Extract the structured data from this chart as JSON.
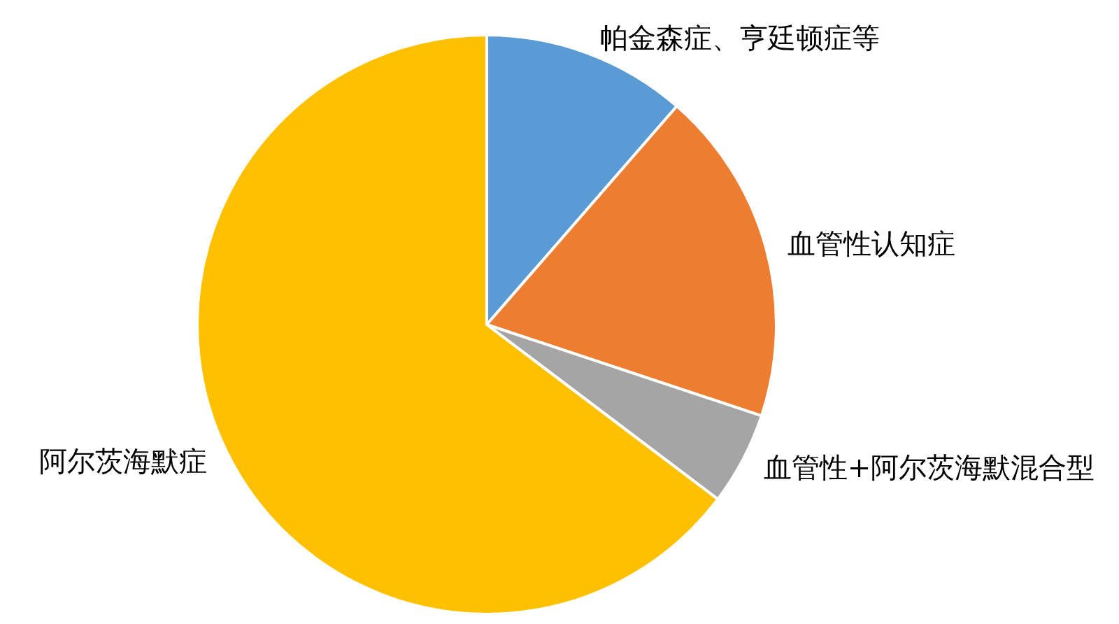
{
  "chart_data": {
    "type": "pie",
    "categories": [
      "帕金森症、亨廷顿症等",
      "血管性认知症",
      "血管性+阿尔茨海默混合型",
      "阿尔茨海默症"
    ],
    "values": [
      11.4,
      18.7,
      5.2,
      64.7
    ],
    "colors": [
      "#5b9bd5",
      "#ed7d31",
      "#a5a5a5",
      "#ffc000"
    ]
  }
}
